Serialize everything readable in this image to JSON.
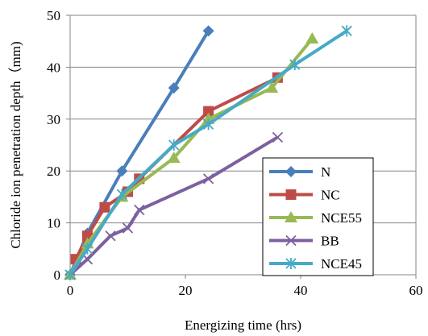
{
  "chart_data": {
    "type": "line",
    "title": "",
    "xlabel": "Energizing  time (hrs)",
    "ylabel": "Chloride ion penetration depth（mm)",
    "xlim": [
      0,
      60
    ],
    "ylim": [
      0,
      50
    ],
    "xticks": [
      0,
      20,
      40,
      60
    ],
    "yticks": [
      0,
      10,
      20,
      30,
      40,
      50
    ],
    "grid": "horizontal",
    "legend_position": "bottom-right",
    "series": [
      {
        "name": "N",
        "color": "#4a7ebb",
        "marker": "diamond",
        "x": [
          0,
          3,
          9,
          18,
          24
        ],
        "y": [
          0,
          8,
          20,
          36,
          47
        ]
      },
      {
        "name": "NC",
        "color": "#be4b48",
        "marker": "square",
        "x": [
          1,
          3,
          6,
          10,
          12,
          24,
          36
        ],
        "y": [
          3,
          7.5,
          13,
          16,
          18.5,
          31.5,
          38
        ]
      },
      {
        "name": "NCE55",
        "color": "#98b954",
        "marker": "triangle",
        "x": [
          0,
          3,
          9,
          18,
          24,
          35,
          42
        ],
        "y": [
          0,
          6,
          15,
          22.5,
          30,
          36,
          45.5
        ]
      },
      {
        "name": "BB",
        "color": "#7d60a0",
        "marker": "x",
        "x": [
          0,
          3,
          7,
          10,
          12,
          24,
          36
        ],
        "y": [
          0,
          3,
          7.5,
          9,
          12.5,
          18.5,
          26.5
        ]
      },
      {
        "name": "NCE45",
        "color": "#46aac5",
        "marker": "asterisk",
        "x": [
          0,
          3,
          9,
          18,
          24,
          39,
          48
        ],
        "y": [
          0,
          5,
          15.5,
          25,
          29,
          40.5,
          47
        ]
      }
    ]
  }
}
